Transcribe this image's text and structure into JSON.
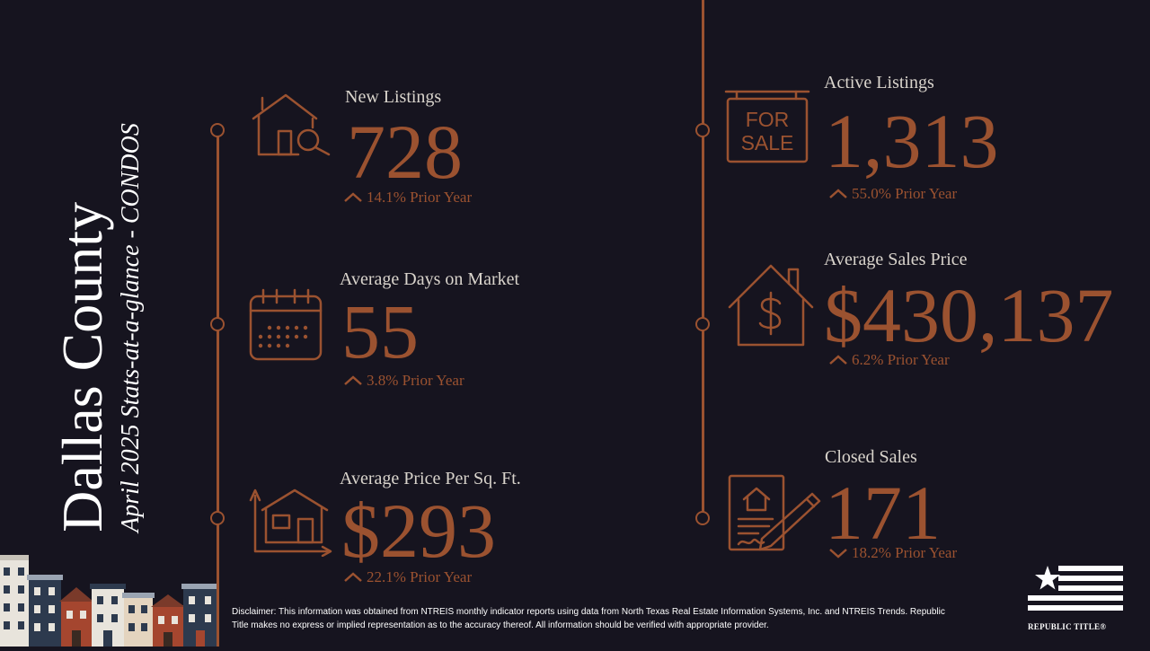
{
  "title": {
    "county": "Dallas County",
    "subtitle": "April 2025 Stats-at-a-glance - CONDOS"
  },
  "colors": {
    "background": "#16141f",
    "accent": "#9b5230",
    "label": "#d9d4cc",
    "text": "#ffffff"
  },
  "stats": {
    "new_listings": {
      "label": "New Listings",
      "value": "728",
      "change": "14.1% Prior Year",
      "direction": "up",
      "icon": "house-search-icon"
    },
    "avg_days": {
      "label": "Average Days on Market",
      "value": "55",
      "change": "3.8% Prior Year",
      "direction": "up",
      "icon": "calendar-icon"
    },
    "avg_ppsf": {
      "label": "Average Price Per Sq. Ft.",
      "value": "$293",
      "change": "22.1% Prior Year",
      "direction": "up",
      "icon": "house-dimensions-icon"
    },
    "active_listings": {
      "label": "Active Listings",
      "value": "1,313",
      "change": "55.0% Prior Year",
      "direction": "up",
      "icon": "for-sale-sign-icon"
    },
    "avg_sales_price": {
      "label": "Average Sales Price",
      "value": "$430,137",
      "change": "6.2% Prior Year",
      "direction": "up",
      "icon": "house-dollar-icon"
    },
    "closed_sales": {
      "label": "Closed Sales",
      "value": "171",
      "change": "18.2% Prior Year",
      "direction": "down",
      "icon": "contract-signing-icon"
    }
  },
  "for_sale_sign": {
    "line1": "FOR",
    "line2": "SALE"
  },
  "disclaimer": "Disclaimer: This information was obtained from NTREIS monthly indicator reports using data from North Texas Real Estate Information Systems, Inc. and NTREIS Trends. Republic Title makes no express or implied representation as to the accuracy thereof. All information should be verified with appropriate provider.",
  "logo": {
    "name": "REPUBLIC TITLE®"
  }
}
